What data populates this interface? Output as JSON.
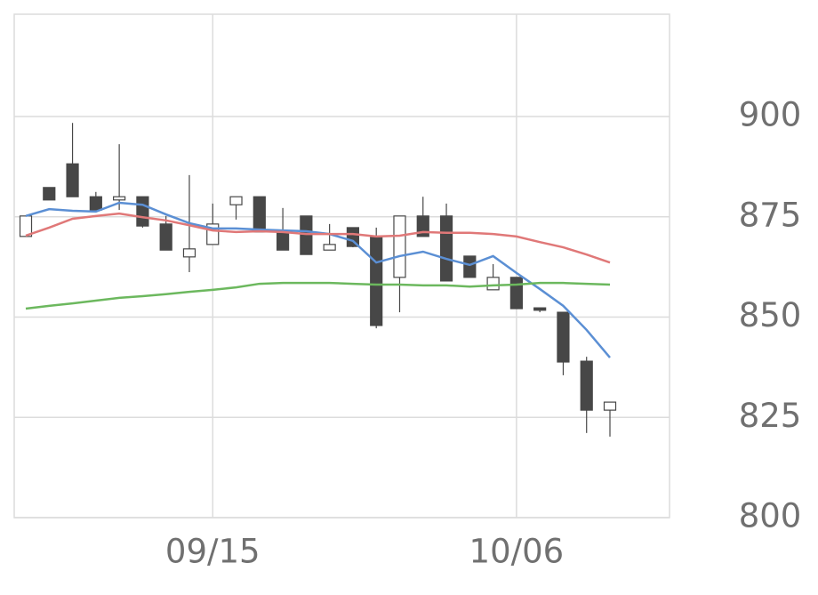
{
  "chart_data": {
    "type": "candlestick",
    "categories": [
      null,
      null,
      null,
      null,
      null,
      null,
      null,
      null,
      "09/15",
      null,
      null,
      null,
      null,
      null,
      null,
      null,
      null,
      null,
      null,
      null,
      null,
      "10/06",
      null,
      null,
      null,
      null
    ],
    "open": [
      870.1,
      882.3,
      888.2,
      880.0,
      879.2,
      880.0,
      873.2,
      865.0,
      868.1,
      878.0,
      880.0,
      871.2,
      875.2,
      866.7,
      872.3,
      870.1,
      859.9,
      875.2,
      875.2,
      865.2,
      856.8,
      859.9,
      852.3,
      851.2,
      839.0,
      826.8
    ],
    "high": [
      875.2,
      882.3,
      898.4,
      881.2,
      893.1,
      880.0,
      875.2,
      885.4,
      878.3,
      880.0,
      880.0,
      877.2,
      875.2,
      873.2,
      872.3,
      872.3,
      875.2,
      880.0,
      878.3,
      865.2,
      863.2,
      859.9,
      852.3,
      851.2,
      840.1,
      828.8
    ],
    "low": [
      870.1,
      879.2,
      880.0,
      876.7,
      876.7,
      872.3,
      866.7,
      861.2,
      868.1,
      874.3,
      871.2,
      866.7,
      865.6,
      866.7,
      867.4,
      847.2,
      851.2,
      870.1,
      859.0,
      859.9,
      856.8,
      852.1,
      851.2,
      835.5,
      821.1,
      820.2
    ],
    "close": [
      875.2,
      879.2,
      880.0,
      876.7,
      880.0,
      872.7,
      866.7,
      867.0,
      873.2,
      880.0,
      871.2,
      866.7,
      865.6,
      868.1,
      867.6,
      847.9,
      875.2,
      870.1,
      859.0,
      859.9,
      859.9,
      852.1,
      851.7,
      838.8,
      826.8,
      828.8
    ],
    "up_color": "#ffffff",
    "down_color": "#474747",
    "series": [
      {
        "color": "#5b8fd4",
        "values": [
          875.2,
          876.9,
          876.5,
          876.3,
          878.5,
          878.0,
          875.6,
          873.4,
          872.1,
          872.1,
          871.8,
          871.6,
          871.4,
          870.7,
          869.0,
          863.6,
          865.2,
          866.3,
          864.5,
          863.0,
          865.2,
          861.0,
          857.0,
          852.8,
          846.8,
          839.9
        ]
      },
      {
        "color": "#e07878",
        "values": [
          870.3,
          872.3,
          874.5,
          875.2,
          875.8,
          874.9,
          874.1,
          872.9,
          871.6,
          871.2,
          871.4,
          871.2,
          870.7,
          870.7,
          870.7,
          870.1,
          870.3,
          871.2,
          871.0,
          871.0,
          870.7,
          870.1,
          868.7,
          867.4,
          865.6,
          863.6
        ]
      },
      {
        "color": "#6cb85e",
        "values": [
          852.1,
          852.8,
          853.4,
          854.1,
          854.8,
          855.2,
          855.7,
          856.3,
          856.8,
          857.4,
          858.3,
          858.5,
          858.5,
          858.5,
          858.3,
          858.1,
          858.1,
          857.9,
          857.9,
          857.6,
          857.9,
          858.1,
          858.5,
          858.5,
          858.3,
          858.1
        ]
      }
    ],
    "ylim": [
      800,
      925.5
    ],
    "yticks": [
      800,
      825,
      850,
      875,
      900
    ],
    "grid": true
  }
}
